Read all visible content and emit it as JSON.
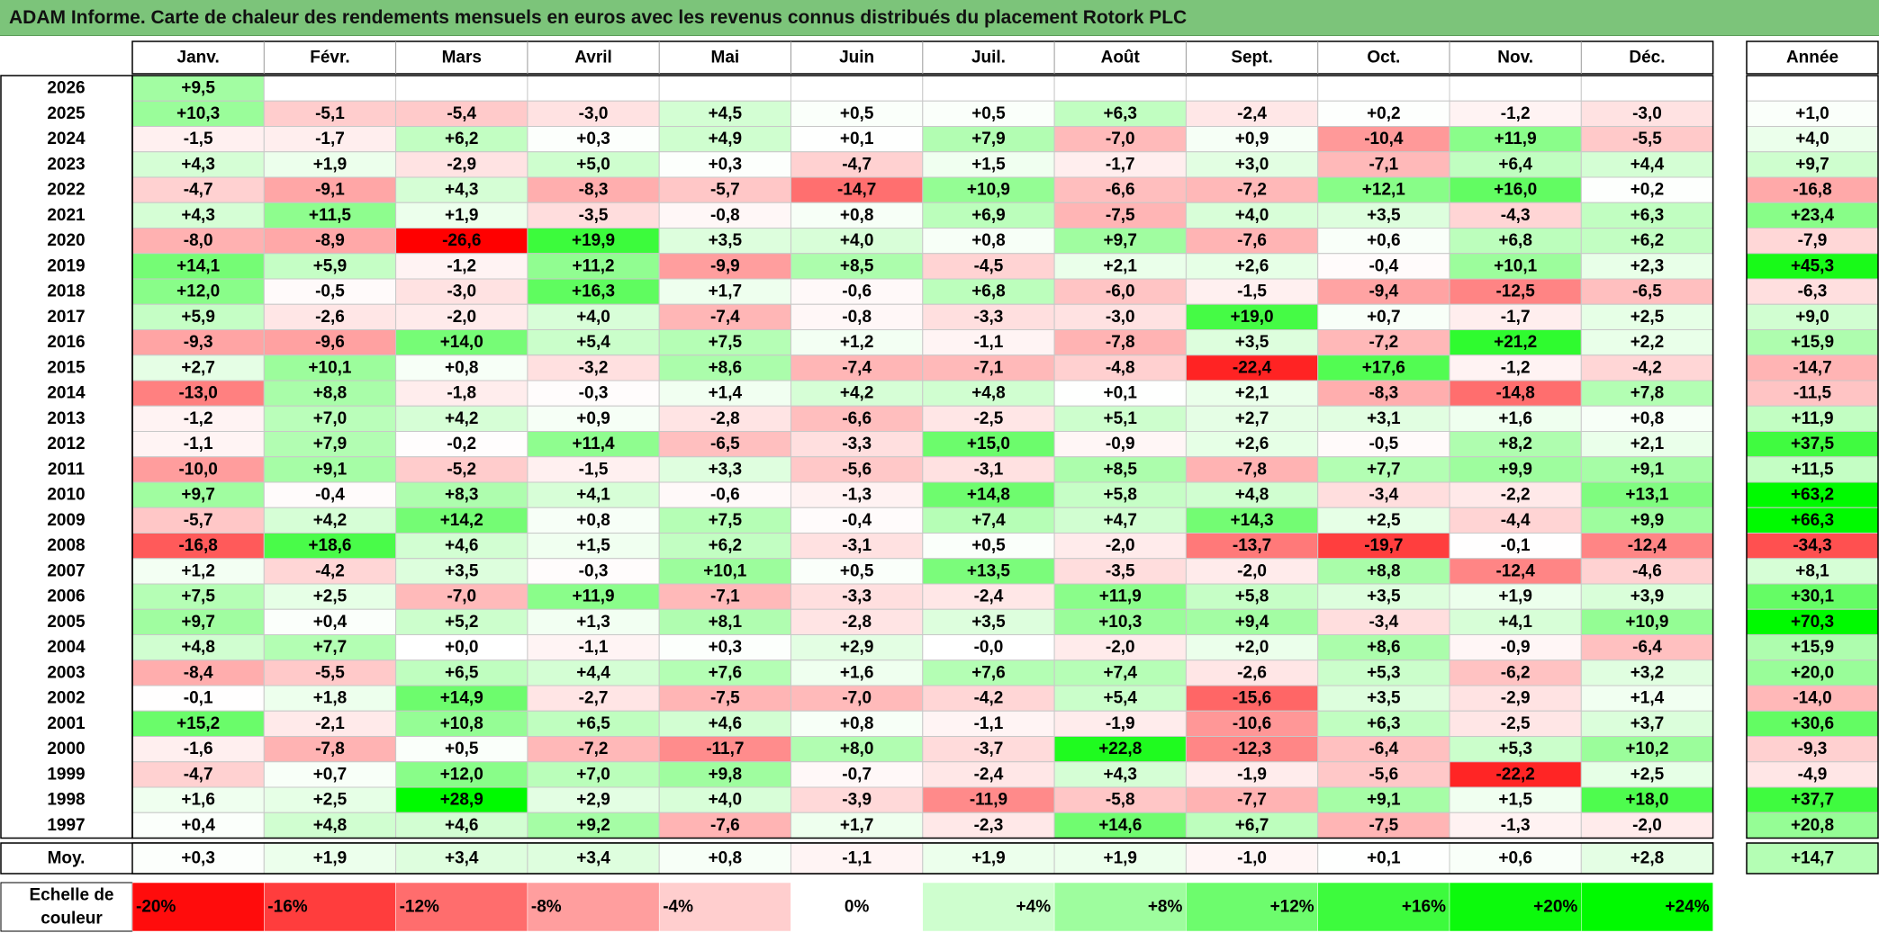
{
  "title": "ADAM Informe. Carte de chaleur des rendements mensuels en euros avec les revenus connus distribués du placement Rotork PLC",
  "chart_data": {
    "type": "heatmap",
    "title": "ADAM Informe. Carte de chaleur des rendements mensuels en euros avec les revenus connus distribués du placement Rotork PLC",
    "columns": [
      "Janv.",
      "Févr.",
      "Mars",
      "Avril",
      "Mai",
      "Juin",
      "Juil.",
      "Août",
      "Sept.",
      "Oct.",
      "Nov.",
      "Déc."
    ],
    "annual_header": "Année",
    "rows": [
      {
        "year": "2026",
        "months": [
          "+9,5",
          "",
          "",
          "",
          "",
          "",
          "",
          "",
          "",
          "",
          "",
          ""
        ],
        "annual": ""
      },
      {
        "year": "2025",
        "months": [
          "+10,3",
          "-5,1",
          "-5,4",
          "-3,0",
          "+4,5",
          "+0,5",
          "+0,5",
          "+6,3",
          "-2,4",
          "+0,2",
          "-1,2",
          "-3,0"
        ],
        "annual": "+1,0"
      },
      {
        "year": "2024",
        "months": [
          "-1,5",
          "-1,7",
          "+6,2",
          "+0,3",
          "+4,9",
          "+0,1",
          "+7,9",
          "-7,0",
          "+0,9",
          "-10,4",
          "+11,9",
          "-5,5"
        ],
        "annual": "+4,0"
      },
      {
        "year": "2023",
        "months": [
          "+4,3",
          "+1,9",
          "-2,9",
          "+5,0",
          "+0,3",
          "-4,7",
          "+1,5",
          "-1,7",
          "+3,0",
          "-7,1",
          "+6,4",
          "+4,4"
        ],
        "annual": "+9,7"
      },
      {
        "year": "2022",
        "months": [
          "-4,7",
          "-9,1",
          "+4,3",
          "-8,3",
          "-5,7",
          "-14,7",
          "+10,9",
          "-6,6",
          "-7,2",
          "+12,1",
          "+16,0",
          "+0,2"
        ],
        "annual": "-16,8"
      },
      {
        "year": "2021",
        "months": [
          "+4,3",
          "+11,5",
          "+1,9",
          "-3,5",
          "-0,8",
          "+0,8",
          "+6,9",
          "-7,5",
          "+4,0",
          "+3,5",
          "-4,3",
          "+6,3"
        ],
        "annual": "+23,4"
      },
      {
        "year": "2020",
        "months": [
          "-8,0",
          "-8,9",
          "-26,6",
          "+19,9",
          "+3,5",
          "+4,0",
          "+0,8",
          "+9,7",
          "-7,6",
          "+0,6",
          "+6,8",
          "+6,2"
        ],
        "annual": "-7,9"
      },
      {
        "year": "2019",
        "months": [
          "+14,1",
          "+5,9",
          "-1,2",
          "+11,2",
          "-9,9",
          "+8,5",
          "-4,5",
          "+2,1",
          "+2,6",
          "-0,4",
          "+10,1",
          "+2,3"
        ],
        "annual": "+45,3"
      },
      {
        "year": "2018",
        "months": [
          "+12,0",
          "-0,5",
          "-3,0",
          "+16,3",
          "+1,7",
          "-0,6",
          "+6,8",
          "-6,0",
          "-1,5",
          "-9,4",
          "-12,5",
          "-6,5"
        ],
        "annual": "-6,3"
      },
      {
        "year": "2017",
        "months": [
          "+5,9",
          "-2,6",
          "-2,0",
          "+4,0",
          "-7,4",
          "-0,8",
          "-3,3",
          "-3,0",
          "+19,0",
          "+0,7",
          "-1,7",
          "+2,5"
        ],
        "annual": "+9,0"
      },
      {
        "year": "2016",
        "months": [
          "-9,3",
          "-9,6",
          "+14,0",
          "+5,4",
          "+7,5",
          "+1,2",
          "-1,1",
          "-7,8",
          "+3,5",
          "-7,2",
          "+21,2",
          "+2,2"
        ],
        "annual": "+15,9"
      },
      {
        "year": "2015",
        "months": [
          "+2,7",
          "+10,1",
          "+0,8",
          "-3,2",
          "+8,6",
          "-7,4",
          "-7,1",
          "-4,8",
          "-22,4",
          "+17,6",
          "-1,2",
          "-4,2"
        ],
        "annual": "-14,7"
      },
      {
        "year": "2014",
        "months": [
          "-13,0",
          "+8,8",
          "-1,8",
          "-0,3",
          "+1,4",
          "+4,2",
          "+4,8",
          "+0,1",
          "+2,1",
          "-8,3",
          "-14,8",
          "+7,8"
        ],
        "annual": "-11,5"
      },
      {
        "year": "2013",
        "months": [
          "-1,2",
          "+7,0",
          "+4,2",
          "+0,9",
          "-2,8",
          "-6,6",
          "-2,5",
          "+5,1",
          "+2,7",
          "+3,1",
          "+1,6",
          "+0,8"
        ],
        "annual": "+11,9"
      },
      {
        "year": "2012",
        "months": [
          "-1,1",
          "+7,9",
          "-0,2",
          "+11,4",
          "-6,5",
          "-3,3",
          "+15,0",
          "-0,9",
          "+2,6",
          "-0,5",
          "+8,2",
          "+2,1"
        ],
        "annual": "+37,5"
      },
      {
        "year": "2011",
        "months": [
          "-10,0",
          "+9,1",
          "-5,2",
          "-1,5",
          "+3,3",
          "-5,6",
          "-3,1",
          "+8,5",
          "-7,8",
          "+7,7",
          "+9,9",
          "+9,1"
        ],
        "annual": "+11,5"
      },
      {
        "year": "2010",
        "months": [
          "+9,7",
          "-0,4",
          "+8,3",
          "+4,1",
          "-0,6",
          "-1,3",
          "+14,8",
          "+5,8",
          "+4,8",
          "-3,4",
          "-2,2",
          "+13,1"
        ],
        "annual": "+63,2"
      },
      {
        "year": "2009",
        "months": [
          "-5,7",
          "+4,2",
          "+14,2",
          "+0,8",
          "+7,5",
          "-0,4",
          "+7,4",
          "+4,7",
          "+14,3",
          "+2,5",
          "-4,4",
          "+9,9"
        ],
        "annual": "+66,3"
      },
      {
        "year": "2008",
        "months": [
          "-16,8",
          "+18,6",
          "+4,6",
          "+1,5",
          "+6,2",
          "-3,1",
          "+0,5",
          "-2,0",
          "-13,7",
          "-19,7",
          "-0,1",
          "-12,4"
        ],
        "annual": "-34,3"
      },
      {
        "year": "2007",
        "months": [
          "+1,2",
          "-4,2",
          "+3,5",
          "-0,3",
          "+10,1",
          "+0,5",
          "+13,5",
          "-3,5",
          "-2,0",
          "+8,8",
          "-12,4",
          "-4,6"
        ],
        "annual": "+8,1"
      },
      {
        "year": "2006",
        "months": [
          "+7,5",
          "+2,5",
          "-7,0",
          "+11,9",
          "-7,1",
          "-3,3",
          "-2,4",
          "+11,9",
          "+5,8",
          "+3,5",
          "+1,9",
          "+3,9"
        ],
        "annual": "+30,1"
      },
      {
        "year": "2005",
        "months": [
          "+9,7",
          "+0,4",
          "+5,2",
          "+1,3",
          "+8,1",
          "-2,8",
          "+3,5",
          "+10,3",
          "+9,4",
          "-3,4",
          "+4,1",
          "+10,9"
        ],
        "annual": "+70,3"
      },
      {
        "year": "2004",
        "months": [
          "+4,8",
          "+7,7",
          "+0,0",
          "-1,1",
          "+0,3",
          "+2,9",
          "-0,0",
          "-2,0",
          "+2,0",
          "+8,6",
          "-0,9",
          "-6,4"
        ],
        "annual": "+15,9"
      },
      {
        "year": "2003",
        "months": [
          "-8,4",
          "-5,5",
          "+6,5",
          "+4,4",
          "+7,6",
          "+1,6",
          "+7,6",
          "+7,4",
          "-2,6",
          "+5,3",
          "-6,2",
          "+3,2"
        ],
        "annual": "+20,0"
      },
      {
        "year": "2002",
        "months": [
          "-0,1",
          "+1,8",
          "+14,9",
          "-2,7",
          "-7,5",
          "-7,0",
          "-4,2",
          "+5,4",
          "-15,6",
          "+3,5",
          "-2,9",
          "+1,4"
        ],
        "annual": "-14,0"
      },
      {
        "year": "2001",
        "months": [
          "+15,2",
          "-2,1",
          "+10,8",
          "+6,5",
          "+4,6",
          "+0,8",
          "-1,1",
          "-1,9",
          "-10,6",
          "+6,3",
          "-2,5",
          "+3,7"
        ],
        "annual": "+30,6"
      },
      {
        "year": "2000",
        "months": [
          "-1,6",
          "-7,8",
          "+0,5",
          "-7,2",
          "-11,7",
          "+8,0",
          "-3,7",
          "+22,8",
          "-12,3",
          "-6,4",
          "+5,3",
          "+10,2"
        ],
        "annual": "-9,3"
      },
      {
        "year": "1999",
        "months": [
          "-4,7",
          "+0,7",
          "+12,0",
          "+7,0",
          "+9,8",
          "-0,7",
          "-2,4",
          "+4,3",
          "-1,9",
          "-5,6",
          "-22,2",
          "+2,5"
        ],
        "annual": "-4,9"
      },
      {
        "year": "1998",
        "months": [
          "+1,6",
          "+2,5",
          "+28,9",
          "+2,9",
          "+4,0",
          "-3,9",
          "-11,9",
          "-5,8",
          "-7,7",
          "+9,1",
          "+1,5",
          "+18,0"
        ],
        "annual": "+37,7"
      },
      {
        "year": "1997",
        "months": [
          "+0,4",
          "+4,8",
          "+4,6",
          "+9,2",
          "-7,6",
          "+1,7",
          "-2,3",
          "+14,6",
          "+6,7",
          "-7,5",
          "-1,3",
          "-2,0"
        ],
        "annual": "+20,8"
      }
    ],
    "average": {
      "label": "Moy.",
      "months": [
        "+0,3",
        "+1,9",
        "+3,4",
        "+3,4",
        "+0,8",
        "-1,1",
        "+1,9",
        "+1,9",
        "-1,0",
        "+0,1",
        "+0,6",
        "+2,8"
      ],
      "annual": "+14,7"
    },
    "scale": {
      "label_line1": "Echelle de",
      "label_line2": "couleur",
      "steps": [
        {
          "label": "-20%",
          "value": -20
        },
        {
          "label": "-16%",
          "value": -16
        },
        {
          "label": "-12%",
          "value": -12
        },
        {
          "label": "-8%",
          "value": -8
        },
        {
          "label": "-4%",
          "value": -4
        },
        {
          "label": "0%",
          "value": 0
        },
        {
          "label": "+4%",
          "value": 4
        },
        {
          "label": "+8%",
          "value": 8
        },
        {
          "label": "+12%",
          "value": 12
        },
        {
          "label": "+16%",
          "value": 16
        },
        {
          "label": "+20%",
          "value": 20
        },
        {
          "label": "+24%",
          "value": 24
        }
      ]
    },
    "colors": {
      "negative_max": "#ff0000",
      "positive_max": "#00ff00",
      "neutral": "#ffffff",
      "title_bar": "#7cc47a"
    }
  }
}
